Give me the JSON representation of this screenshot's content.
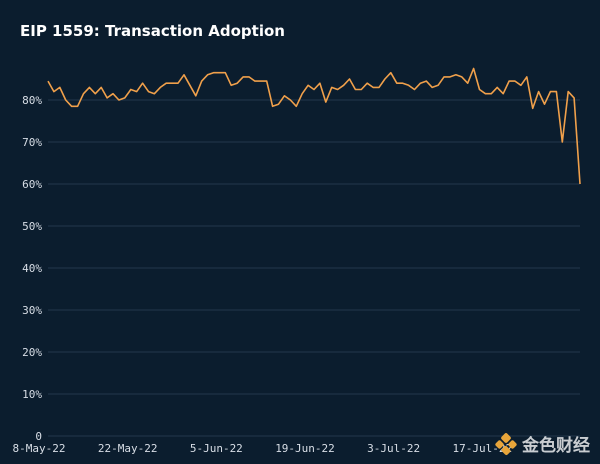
{
  "chart_data": {
    "type": "line",
    "title": "EIP 1559: Transaction Adoption",
    "xlabel": "",
    "ylabel": "",
    "ylim": [
      0,
      90
    ],
    "yticks": [
      0,
      10,
      20,
      30,
      40,
      50,
      60,
      70,
      80
    ],
    "ytick_labels": [
      "0",
      "10%",
      "20%",
      "30%",
      "40%",
      "50%",
      "60%",
      "70%",
      "80%"
    ],
    "x_tick_labels": [
      "8-May-22",
      "22-May-22",
      "5-Jun-22",
      "19-Jun-22",
      "3-Jul-22",
      "17-Jul-22"
    ],
    "x_start": "2022-05-08",
    "x_end": "2022-07-31",
    "line_color": "#f0a04b",
    "grid": true,
    "series": [
      {
        "values": [
          84.5,
          82,
          83,
          80,
          78.5,
          78.5,
          81.5,
          83,
          81.5,
          83,
          80.5,
          81.5,
          80,
          80.5,
          82.5,
          82,
          84,
          82,
          81.5,
          83,
          84,
          84,
          84,
          86,
          83.5,
          81,
          84.5,
          86,
          86.5,
          86.5,
          86.5,
          83.5,
          84,
          85.5,
          85.5,
          84.5,
          84.5,
          84.5,
          78.5,
          79,
          81,
          80,
          78.5,
          81.5,
          83.5,
          82.5,
          84,
          79.5,
          83,
          82.5,
          83.5,
          85,
          82.5,
          82.5,
          84,
          83,
          83,
          85,
          86.5,
          84,
          84,
          83.5,
          82.5,
          84,
          84.5,
          83,
          83.5,
          85.5,
          85.5,
          86,
          85.5,
          84,
          87.5,
          82.5,
          81.5,
          81.5,
          83,
          81.5,
          84.5,
          84.5,
          83.5,
          85.5,
          78,
          82,
          79,
          82,
          82,
          70,
          82,
          80.5,
          60
        ]
      }
    ]
  },
  "watermark": {
    "text": "金色财经"
  }
}
